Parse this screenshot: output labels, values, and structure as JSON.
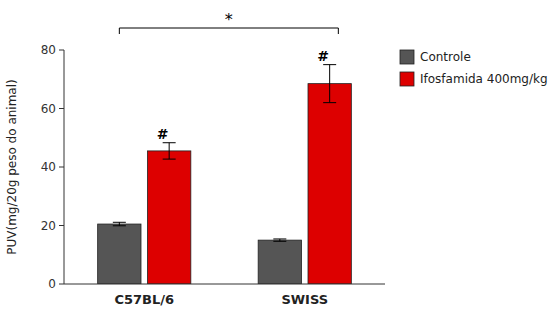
{
  "chart_data": {
    "type": "bar",
    "categories": [
      "C57BL/6",
      "SWISS"
    ],
    "series": [
      {
        "name": "Controle",
        "color": "#555555",
        "values": [
          20.5,
          15.0
        ],
        "errors": [
          0.6,
          0.4
        ]
      },
      {
        "name": "Ifosfamida 400mg/kg",
        "color": "#DD0000",
        "values": [
          45.5,
          68.5
        ],
        "errors": [
          2.8,
          6.5
        ]
      }
    ],
    "y_label": "PUV(mg/20g peso do animal)",
    "ylim": [
      0,
      80
    ],
    "yticks": [
      0,
      20,
      40,
      60,
      80
    ],
    "grid": false,
    "legend": "upper right",
    "annotations": [
      {
        "text": "#",
        "category": "C57BL/6",
        "series": "Ifosfamida 400mg/kg"
      },
      {
        "text": "#",
        "category": "SWISS",
        "series": "Ifosfamida 400mg/kg"
      },
      {
        "text": "*",
        "from": "C57BL/6",
        "to": "SWISS"
      }
    ]
  }
}
